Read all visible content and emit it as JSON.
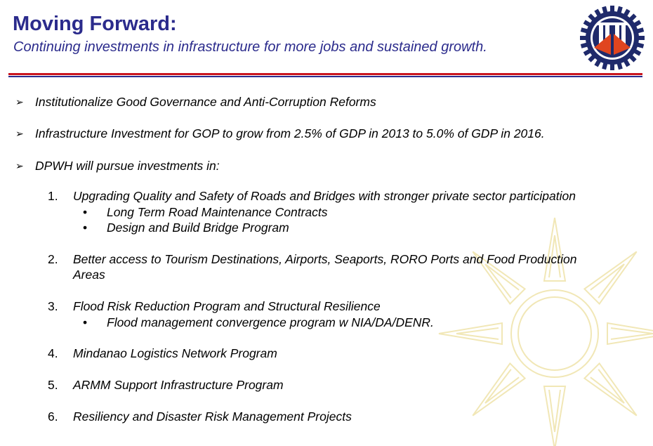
{
  "header": {
    "title": "Moving Forward:",
    "subtitle": "Continuing investments in infrastructure for more jobs and sustained growth."
  },
  "colors": {
    "title": "#2b2b8c",
    "rule_red": "#c8141e",
    "rule_blue": "#2b2b8c",
    "watermark": "#f1e7b6"
  },
  "bullets": [
    "Institutionalize Good Governance and Anti-Corruption Reforms",
    "Infrastructure Investment for GOP to grow from 2.5% of GDP in 2013 to 5.0% of GDP in 2016.",
    "DPWH will pursue investments in:"
  ],
  "items": [
    {
      "num": "1.",
      "lines": [
        "Upgrading Quality and Safety of Roads and Bridges with stronger private sector participation"
      ],
      "subs": [
        "Long Term Road Maintenance Contracts",
        "Design and Build Bridge Program"
      ]
    },
    {
      "num": "2.",
      "lines": [
        "Better access to Tourism Destinations, Airports, Seaports, RORO Ports and Food Production",
        "Areas"
      ],
      "subs": []
    },
    {
      "num": "3.",
      "lines": [
        "Flood Risk Reduction Program and Structural Resilience"
      ],
      "subs": [
        "Flood management convergence program w NIA/DA/DENR."
      ]
    },
    {
      "num": "4.",
      "lines": [
        "Mindanao Logistics Network Program"
      ],
      "subs": []
    },
    {
      "num": "5.",
      "lines": [
        "ARMM Support Infrastructure Program"
      ],
      "subs": []
    },
    {
      "num": "6.",
      "lines": [
        "Resiliency and Disaster Risk Management Projects"
      ],
      "subs": []
    }
  ],
  "icons": {
    "logo": "dpwh-gear-logo-icon",
    "watermark": "sun-watermark-icon",
    "arrow": "arrow-bullet-icon"
  }
}
